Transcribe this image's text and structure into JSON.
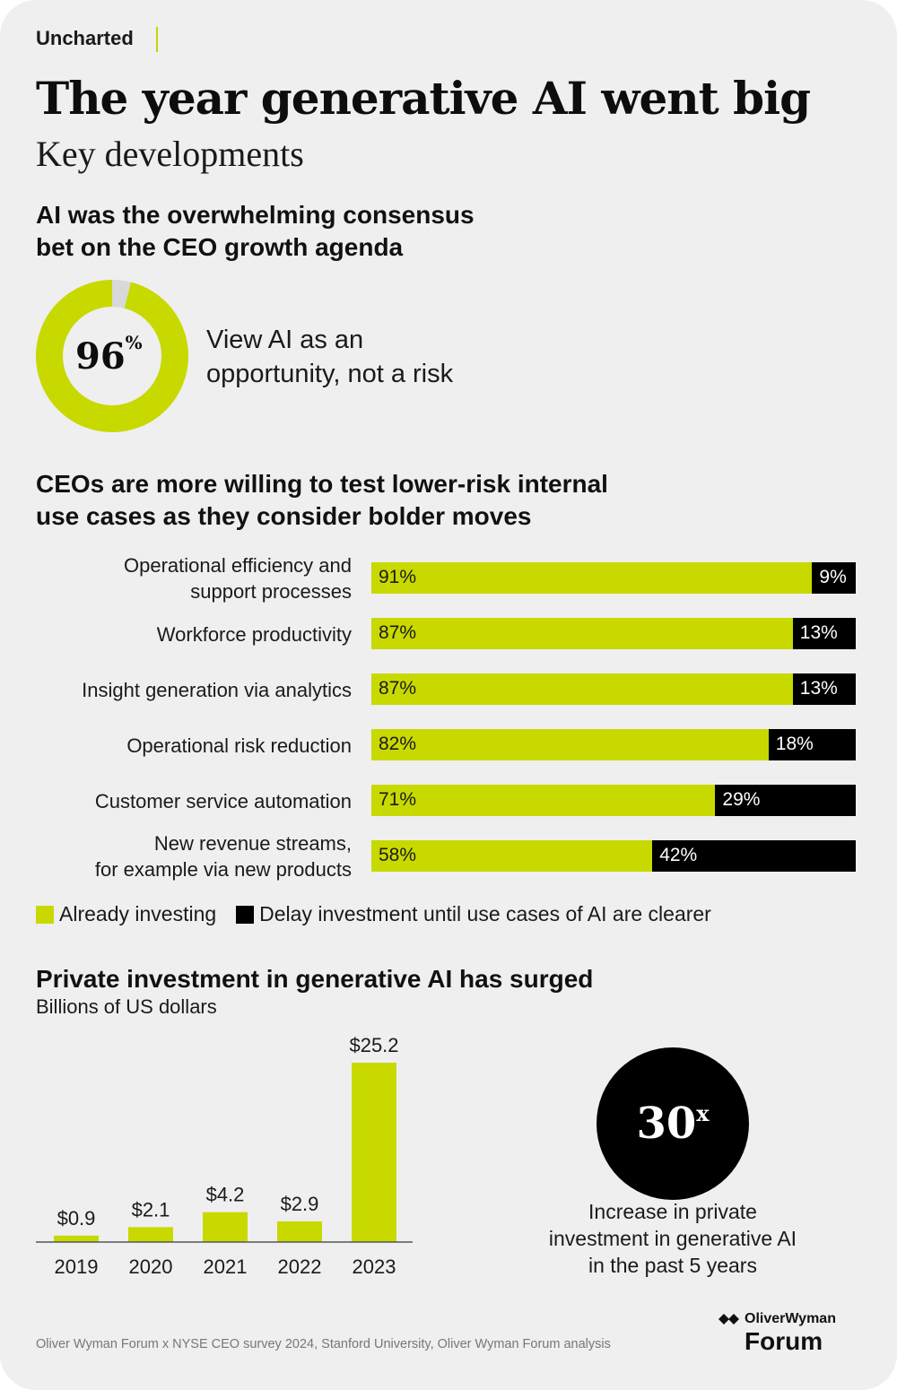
{
  "brand": "Uncharted",
  "title": "The year generative AI went big",
  "subtitle": "Key developments",
  "section1": {
    "heading_line1": "AI was the overwhelming consensus",
    "heading_line2": "bet on the CEO growth agenda",
    "value": "96",
    "value_unit": "%",
    "fraction": 0.96,
    "text_line1": "View AI as an",
    "text_line2": "opportunity, not a risk"
  },
  "section2": {
    "heading_line1": "CEOs are more willing to test lower-risk internal",
    "heading_line2": "use cases as they consider bolder moves",
    "legend_invest": "Already investing",
    "legend_delay": "Delay investment until use cases of AI are clearer"
  },
  "section3": {
    "heading": "Private investment in generative AI has surged",
    "unit": "Billions of US dollars",
    "big_number": "30",
    "big_suffix": "x",
    "big_text_line1": "Increase in private",
    "big_text_line2": "investment in generative AI",
    "big_text_line3": "in the past 5 years"
  },
  "chart_data": [
    {
      "type": "bar",
      "orientation": "horizontal",
      "stacked": true,
      "title": "CEOs are more willing to test lower-risk internal use cases as they consider bolder moves",
      "categories": [
        [
          "Operational efficiency and",
          "support processes"
        ],
        [
          "Workforce productivity"
        ],
        [
          "Insight generation via analytics"
        ],
        [
          "Operational risk reduction"
        ],
        [
          "Customer service automation"
        ],
        [
          "New revenue streams,",
          "for example via new products"
        ]
      ],
      "series": [
        {
          "name": "Already investing",
          "values": [
            91,
            87,
            87,
            82,
            71,
            58
          ],
          "labels": [
            "91%",
            "87%",
            "87%",
            "82%",
            "71%",
            "58%"
          ]
        },
        {
          "name": "Delay investment until use cases of AI are clearer",
          "values": [
            9,
            13,
            13,
            18,
            29,
            42
          ],
          "labels": [
            "9%",
            "13%",
            "13%",
            "18%",
            "29%",
            "42%"
          ]
        }
      ],
      "xlim": [
        0,
        100
      ]
    },
    {
      "type": "bar",
      "orientation": "vertical",
      "title": "Private investment in generative AI has surged",
      "ylabel": "Billions of US dollars",
      "categories": [
        "2019",
        "2020",
        "2021",
        "2022",
        "2023"
      ],
      "values": [
        0.9,
        2.1,
        4.2,
        2.9,
        25.2
      ],
      "labels": [
        "$0.9",
        "$2.1",
        "$4.2",
        "$2.9",
        "$25.2"
      ],
      "ylim": [
        0,
        25.2
      ]
    }
  ],
  "colors": {
    "accent": "#c8d900",
    "dark": "#000000",
    "background": "#efefef",
    "donut_remainder": "#d8d8d8"
  },
  "source": "Oliver Wyman Forum x NYSE CEO survey 2024, Stanford University, Oliver Wyman Forum analysis",
  "logo": {
    "top": "OliverWyman",
    "bottom": "Forum"
  }
}
